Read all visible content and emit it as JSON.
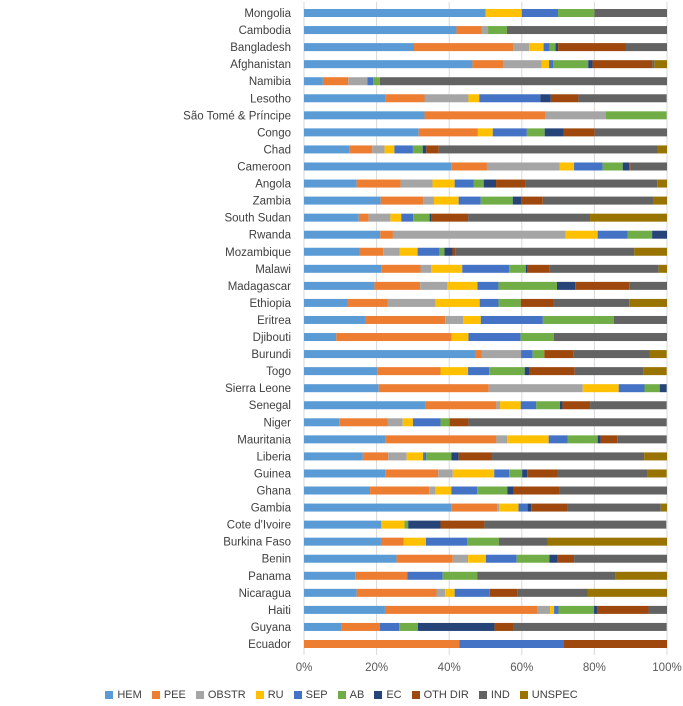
{
  "chart_data": {
    "type": "bar",
    "orientation": "horizontal",
    "stacked": "percent",
    "xlim": [
      0,
      100
    ],
    "x_ticks": [
      "0%",
      "20%",
      "40%",
      "60%",
      "80%",
      "100%"
    ],
    "grid": true,
    "legend_position": "bottom",
    "categories": [
      "Mongolia",
      "Cambodia",
      "Bangladesh",
      "Afghanistan",
      "Namibia",
      "Lesotho",
      "São Tomé & Príncipe",
      "Congo",
      "Chad",
      "Cameroon",
      "Angola",
      "Zambia",
      "South Sudan",
      "Rwanda",
      "Mozambique",
      "Malawi",
      "Madagascar",
      "Ethiopia",
      "Eritrea",
      "Djibouti",
      "Burundi",
      "Togo",
      "Sierra Leone",
      "Senegal",
      "Niger",
      "Mauritania",
      "Liberia",
      "Guinea",
      "Ghana",
      "Gambia",
      "Cote d'Ivoire",
      "Burkina Faso",
      "Benin",
      "Panama",
      "Nicaragua",
      "Haiti",
      "Guyana",
      "Ecuador"
    ],
    "series": [
      {
        "name": "HEM",
        "color": "#5B9BD5",
        "values": [
          50,
          42,
          30.3,
          46.4,
          5.2,
          22.5,
          33.2,
          31.6,
          12.5,
          40.7,
          14.5,
          21.1,
          15.1,
          21,
          15.3,
          21.3,
          19.4,
          12.1,
          16.8,
          8.9,
          47.1,
          20.2,
          20.6,
          33.5,
          9.7,
          22.5,
          16.2,
          22.4,
          18.2,
          40.7,
          21.3,
          21.2,
          25.5,
          14.1,
          14.5,
          22.3,
          10.3,
          0
        ]
      },
      {
        "name": "PEE",
        "color": "#ED7D31",
        "values": [
          0,
          6.9,
          27.3,
          8.6,
          7,
          10.7,
          33.3,
          16.3,
          6.3,
          9.7,
          12.1,
          11.7,
          2.7,
          3.5,
          6.5,
          10.8,
          12.6,
          10.9,
          22.1,
          31.8,
          1.8,
          17.4,
          30.3,
          19.5,
          13.3,
          30.5,
          7,
          14.6,
          16.3,
          12.5,
          0,
          6.3,
          15.5,
          14.4,
          22,
          42,
          10.6,
          42.8
        ]
      },
      {
        "name": "OBSTR",
        "color": "#A5A5A5",
        "values": [
          0,
          1.8,
          4.4,
          10.5,
          5.3,
          12.1,
          16.7,
          0,
          3.4,
          20,
          8.8,
          3,
          6,
          47.6,
          4.6,
          2.9,
          7.5,
          13.2,
          4.9,
          0,
          10.9,
          0,
          25.9,
          1,
          4.2,
          3,
          5.1,
          4,
          1.7,
          0.6,
          0,
          0,
          4.2,
          0,
          2.4,
          3.5,
          0,
          0
        ]
      },
      {
        "name": "RU",
        "color": "#FFC000",
        "values": [
          10,
          0,
          4,
          2,
          0,
          3,
          0,
          4.1,
          2.7,
          4,
          6.1,
          6.8,
          3,
          8.8,
          4.9,
          8.6,
          8.3,
          12.2,
          4.9,
          4.6,
          0,
          7.6,
          9.9,
          5.7,
          2.8,
          11.4,
          4.5,
          11.4,
          4.4,
          5.3,
          6.4,
          6.1,
          4.9,
          0,
          2.6,
          1.1,
          0,
          0
        ]
      },
      {
        "name": "SEP",
        "color": "#4472C4",
        "values": [
          10,
          0,
          1.7,
          1.1,
          1.6,
          16.8,
          0,
          9.4,
          5.1,
          7.9,
          5.2,
          6.1,
          3.3,
          8.3,
          6,
          12.9,
          5.8,
          5.2,
          17.1,
          14.4,
          3.2,
          5.8,
          7.1,
          4.3,
          7.6,
          5.2,
          0.9,
          4.1,
          7.1,
          2.5,
          0,
          11.4,
          8.5,
          9.7,
          9.7,
          1.2,
          5.3,
          28.6
        ]
      },
      {
        "name": "AB",
        "color": "#70AD47",
        "values": [
          10,
          5.2,
          1.6,
          9.7,
          1.8,
          0,
          16.7,
          4.9,
          2.7,
          5.5,
          2.8,
          8.8,
          4.5,
          6.7,
          1.4,
          4.6,
          16.1,
          6.1,
          19.6,
          9.1,
          3.2,
          9.8,
          4.2,
          6.5,
          2.5,
          8.3,
          6.9,
          3.6,
          8.3,
          0,
          1,
          8.7,
          9,
          9.5,
          0,
          9.8,
          5.2,
          0
        ]
      },
      {
        "name": "EC",
        "color": "#264478",
        "values": [
          0,
          0,
          0.7,
          1.2,
          0,
          2.9,
          0,
          5.2,
          1,
          1.8,
          3.4,
          2.3,
          0.5,
          4.1,
          2.2,
          0.5,
          5,
          0,
          0,
          0,
          0,
          1.4,
          1.9,
          0.7,
          0,
          0.8,
          2,
          1.4,
          1.7,
          1,
          8.9,
          0,
          2.1,
          0,
          0,
          1,
          21.1,
          0
        ]
      },
      {
        "name": "OTH DIR",
        "color": "#9E480E",
        "values": [
          0,
          0,
          18.7,
          16.4,
          0,
          7.6,
          0,
          8.6,
          3.4,
          0.4,
          8.1,
          6,
          10.1,
          0,
          0.9,
          6,
          14.9,
          8.9,
          0,
          0,
          8,
          12.4,
          0,
          7.6,
          5.2,
          4.6,
          9.2,
          8.2,
          12.8,
          10.1,
          12.1,
          0,
          4.7,
          0,
          7.5,
          14,
          5.2,
          28.6
        ]
      },
      {
        "name": "IND",
        "color": "#636363",
        "values": [
          20,
          44.1,
          11.3,
          0.6,
          79.1,
          24.3,
          0,
          20,
          60.4,
          10,
          36.3,
          30.5,
          33.6,
          0,
          49.2,
          30.1,
          10.4,
          21,
          14.6,
          31.2,
          21.1,
          19,
          0,
          21.1,
          54.6,
          13.6,
          41.9,
          24.8,
          29.5,
          25.6,
          50.1,
          13.5,
          25.6,
          38.2,
          19.4,
          5.2,
          42.2,
          0
        ]
      },
      {
        "name": "UNSPEC",
        "color": "#997300",
        "values": [
          0,
          0,
          0,
          3.6,
          0,
          0,
          0,
          0,
          2.5,
          0,
          2.8,
          3.8,
          21.3,
          0,
          9,
          2.5,
          0,
          10.4,
          0,
          0,
          4.6,
          6.3,
          0,
          0,
          0,
          0,
          6.3,
          5.4,
          0,
          1.7,
          0,
          32.8,
          0,
          14.3,
          22,
          0,
          0,
          0
        ]
      }
    ]
  }
}
